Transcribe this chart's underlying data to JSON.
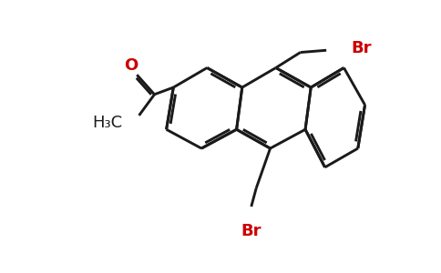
{
  "bg_color": "#ffffff",
  "line_color": "#1a1a1a",
  "red_color": "#cc0000",
  "lw": 2.1,
  "figsize": [
    4.84,
    3.0
  ],
  "dpi": 100,
  "BL": 46,
  "cA": [
    208,
    158
  ],
  "cB": [
    290,
    108
  ],
  "cC": [
    372,
    160
  ],
  "acetyl_attach_idx": 5,
  "bm9_attach_idx": 1,
  "bm10_attach_idx": 4
}
